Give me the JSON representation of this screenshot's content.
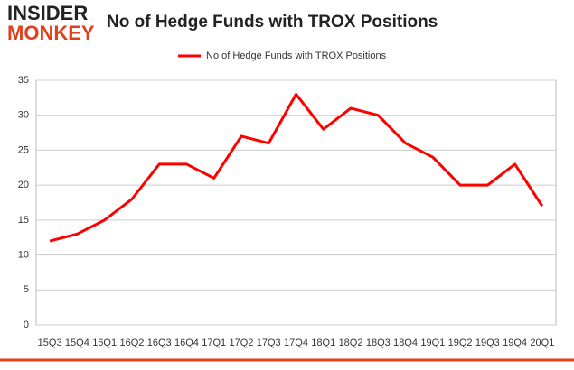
{
  "chart_data": {
    "type": "line",
    "title": "No of Hedge Funds with TROX Positions",
    "logo": [
      "INSIDER",
      "MONKEY"
    ],
    "categories": [
      "15Q3",
      "15Q4",
      "16Q1",
      "16Q2",
      "16Q3",
      "16Q4",
      "17Q1",
      "17Q2",
      "17Q3",
      "17Q4",
      "18Q1",
      "18Q2",
      "18Q3",
      "18Q4",
      "19Q1",
      "19Q2",
      "19Q3",
      "19Q4",
      "20Q1"
    ],
    "series": [
      {
        "name": "No of Hedge Funds with TROX Positions",
        "color": "#ff0000",
        "values": [
          12,
          13,
          15,
          18,
          23,
          23,
          21,
          27,
          26,
          33,
          28,
          31,
          30,
          26,
          24,
          20,
          20,
          23,
          17
        ]
      }
    ],
    "ylim": [
      0,
      35
    ],
    "yticks": [
      0,
      5,
      10,
      15,
      20,
      25,
      30,
      35
    ],
    "grid": true,
    "legend": "top"
  }
}
